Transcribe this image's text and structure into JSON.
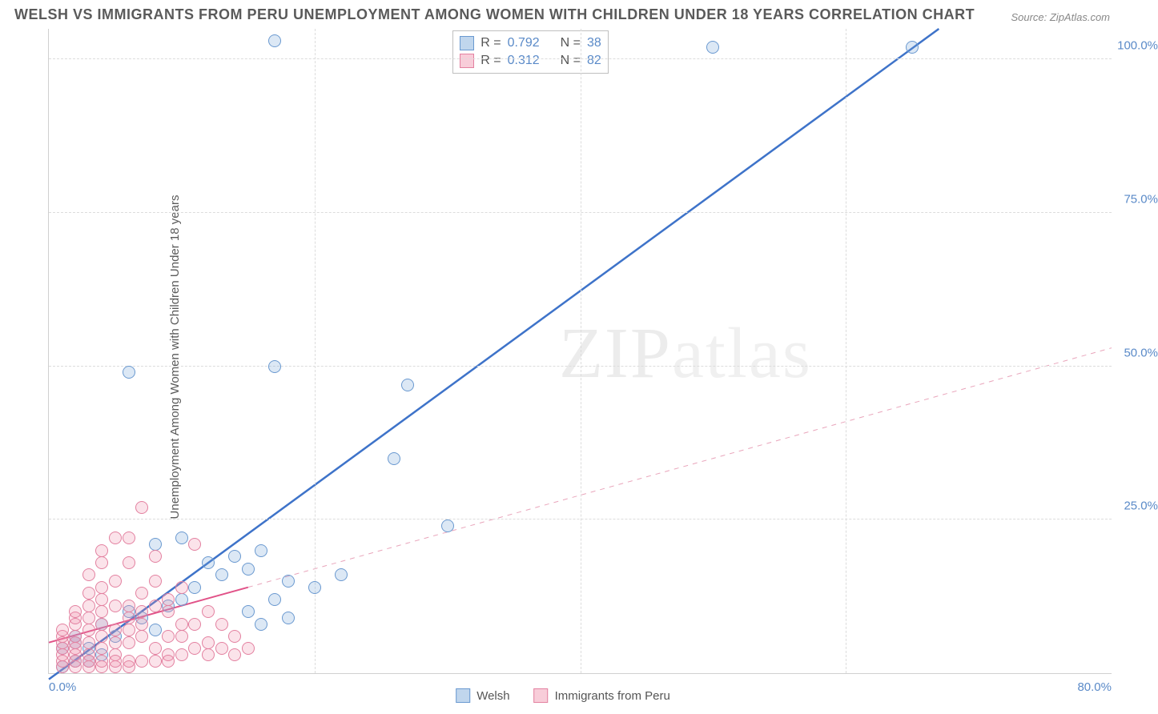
{
  "title": "WELSH VS IMMIGRANTS FROM PERU UNEMPLOYMENT AMONG WOMEN WITH CHILDREN UNDER 18 YEARS CORRELATION CHART",
  "source": "Source: ZipAtlas.com",
  "ylabel": "Unemployment Among Women with Children Under 18 years",
  "watermark_a": "ZIP",
  "watermark_b": "atlas",
  "chart": {
    "type": "scatter",
    "xlim": [
      0,
      80
    ],
    "ylim": [
      0,
      105
    ],
    "xticks": [
      0,
      20,
      40,
      60,
      80
    ],
    "xtick_labels": [
      "0.0%",
      "",
      "",
      "",
      "80.0%"
    ],
    "yticks": [
      25,
      50,
      75,
      100
    ],
    "ytick_labels": [
      "25.0%",
      "50.0%",
      "75.0%",
      "100.0%"
    ],
    "grid_color": "#dcdcdc",
    "background_color": "#ffffff",
    "axis_color": "#d0d0d0",
    "tick_font_color": "#5a8ac8",
    "label_font_color": "#5a5a5a",
    "title_fontsize": 18,
    "label_fontsize": 15,
    "tick_fontsize": 15,
    "series": [
      {
        "name": "Welsh",
        "color_fill": "rgba(116,164,216,0.25)",
        "color_stroke": "#6a99d0",
        "marker_size": 16,
        "trend_solid": {
          "x1": 0,
          "y1": -1,
          "x2": 67,
          "y2": 105,
          "color": "#3e73c9",
          "width": 2.5
        },
        "points": [
          [
            2,
            5
          ],
          [
            3,
            4
          ],
          [
            4,
            8
          ],
          [
            5,
            6
          ],
          [
            6,
            10
          ],
          [
            7,
            9
          ],
          [
            8,
            7
          ],
          [
            9,
            11
          ],
          [
            10,
            12
          ],
          [
            11,
            14
          ],
          [
            12,
            18
          ],
          [
            13,
            16
          ],
          [
            14,
            19
          ],
          [
            15,
            17
          ],
          [
            16,
            20
          ],
          [
            17,
            12
          ],
          [
            18,
            15
          ],
          [
            20,
            14
          ],
          [
            22,
            16
          ],
          [
            8,
            21
          ],
          [
            10,
            22
          ],
          [
            6,
            49
          ],
          [
            17,
            50
          ],
          [
            4,
            3
          ],
          [
            3,
            2
          ],
          [
            2,
            6
          ],
          [
            1,
            4
          ],
          [
            2,
            2
          ],
          [
            1,
            1
          ],
          [
            15,
            10
          ],
          [
            16,
            8
          ],
          [
            18,
            9
          ],
          [
            27,
            47
          ],
          [
            26,
            35
          ],
          [
            50,
            102
          ],
          [
            65,
            102
          ],
          [
            30,
            24
          ],
          [
            17,
            103
          ]
        ]
      },
      {
        "name": "Immigrants from Peru",
        "color_fill": "rgba(240,145,170,0.25)",
        "color_stroke": "#e381a0",
        "marker_size": 16,
        "trend_solid": {
          "x1": 0,
          "y1": 5,
          "x2": 15,
          "y2": 14,
          "color": "#e15288",
          "width": 2
        },
        "trend_dashed": {
          "x1": 15,
          "y1": 14,
          "x2": 80,
          "y2": 53,
          "color": "#e9a5bb",
          "width": 1
        },
        "points": [
          [
            1,
            4
          ],
          [
            1,
            5
          ],
          [
            1,
            6
          ],
          [
            1,
            3
          ],
          [
            1,
            2
          ],
          [
            1,
            7
          ],
          [
            2,
            4
          ],
          [
            2,
            5
          ],
          [
            2,
            6
          ],
          [
            2,
            8
          ],
          [
            2,
            3
          ],
          [
            2,
            9
          ],
          [
            2,
            10
          ],
          [
            3,
            5
          ],
          [
            3,
            7
          ],
          [
            3,
            9
          ],
          [
            3,
            11
          ],
          [
            3,
            3
          ],
          [
            3,
            13
          ],
          [
            3,
            16
          ],
          [
            4,
            6
          ],
          [
            4,
            8
          ],
          [
            4,
            10
          ],
          [
            4,
            12
          ],
          [
            4,
            14
          ],
          [
            4,
            18
          ],
          [
            4,
            4
          ],
          [
            4,
            20
          ],
          [
            5,
            7
          ],
          [
            5,
            11
          ],
          [
            5,
            15
          ],
          [
            5,
            22
          ],
          [
            5,
            5
          ],
          [
            5,
            3
          ],
          [
            6,
            9
          ],
          [
            6,
            11
          ],
          [
            6,
            22
          ],
          [
            6,
            5
          ],
          [
            6,
            7
          ],
          [
            6,
            18
          ],
          [
            7,
            10
          ],
          [
            7,
            13
          ],
          [
            7,
            27
          ],
          [
            7,
            8
          ],
          [
            7,
            6
          ],
          [
            8,
            11
          ],
          [
            8,
            15
          ],
          [
            8,
            2
          ],
          [
            8,
            4
          ],
          [
            8,
            19
          ],
          [
            9,
            10
          ],
          [
            9,
            12
          ],
          [
            9,
            6
          ],
          [
            9,
            3
          ],
          [
            10,
            8
          ],
          [
            10,
            14
          ],
          [
            10,
            3
          ],
          [
            10,
            6
          ],
          [
            11,
            21
          ],
          [
            11,
            4
          ],
          [
            11,
            8
          ],
          [
            12,
            10
          ],
          [
            12,
            5
          ],
          [
            12,
            3
          ],
          [
            13,
            8
          ],
          [
            13,
            4
          ],
          [
            14,
            6
          ],
          [
            14,
            3
          ],
          [
            5,
            1
          ],
          [
            3,
            1
          ],
          [
            1,
            1
          ],
          [
            2,
            1
          ],
          [
            4,
            1
          ],
          [
            6,
            1
          ],
          [
            15,
            4
          ],
          [
            2,
            2
          ],
          [
            3,
            2
          ],
          [
            4,
            2
          ],
          [
            5,
            2
          ],
          [
            6,
            2
          ],
          [
            7,
            2
          ],
          [
            9,
            2
          ]
        ]
      }
    ]
  },
  "stats": {
    "rows": [
      {
        "swatch": "b",
        "r_label": "R =",
        "r_value": "0.792",
        "n_label": "N =",
        "n_value": "38"
      },
      {
        "swatch": "p",
        "r_label": "R =",
        "r_value": "0.312",
        "n_label": "N =",
        "n_value": "82"
      }
    ]
  },
  "bottom_legend": [
    {
      "swatch": "b",
      "label": "Welsh"
    },
    {
      "swatch": "p",
      "label": "Immigrants from Peru"
    }
  ]
}
